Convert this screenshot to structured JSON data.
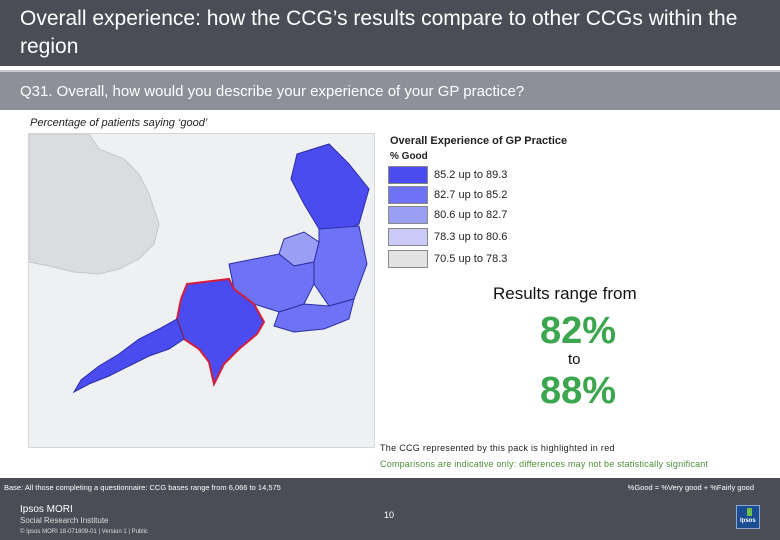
{
  "header": {
    "title": "Overall experience: how the CCG’s results compare to other CCGs within the region"
  },
  "question": {
    "text": "Q31. Overall, how would you describe your experience of your GP practice?"
  },
  "subtitle": "Percentage of patients saying ‘good’",
  "legend": {
    "title": "Overall Experience of GP Practice",
    "subtitle": "% Good",
    "items": [
      {
        "label": "85.2 up to 89.3",
        "color": "#4a4cf0"
      },
      {
        "label": "82.7 up to 85.2",
        "color": "#6e72f4"
      },
      {
        "label": "80.6 up to 82.7",
        "color": "#9a9ef5"
      },
      {
        "label": "78.3 up to 80.6",
        "color": "#c9caf5"
      },
      {
        "label": "70.5 up to 78.3",
        "color": "#e2e2e2"
      }
    ]
  },
  "results": {
    "intro": "Results range from",
    "low": "82%",
    "to": "to",
    "high": "88%",
    "highlight_color": "#3ba64d"
  },
  "notes": {
    "highlight": "The CCG represented by this pack is highlighted in red",
    "comparison": "Comparisons are indicative only: differences may not be statistically significant"
  },
  "footer": {
    "base": "Base: All those completing a questionnaire: CCG bases range from 6,066 to 14,575",
    "definition": "%Good = %Very good + %Fairly good",
    "brand_name": "Ipsos MORI",
    "brand_sub": "Social Research Institute",
    "copyright": "© Ipsos MORI     18-071809-01 | Version 1 | Public",
    "page_number": "10",
    "logo_text": "Ipsos"
  }
}
